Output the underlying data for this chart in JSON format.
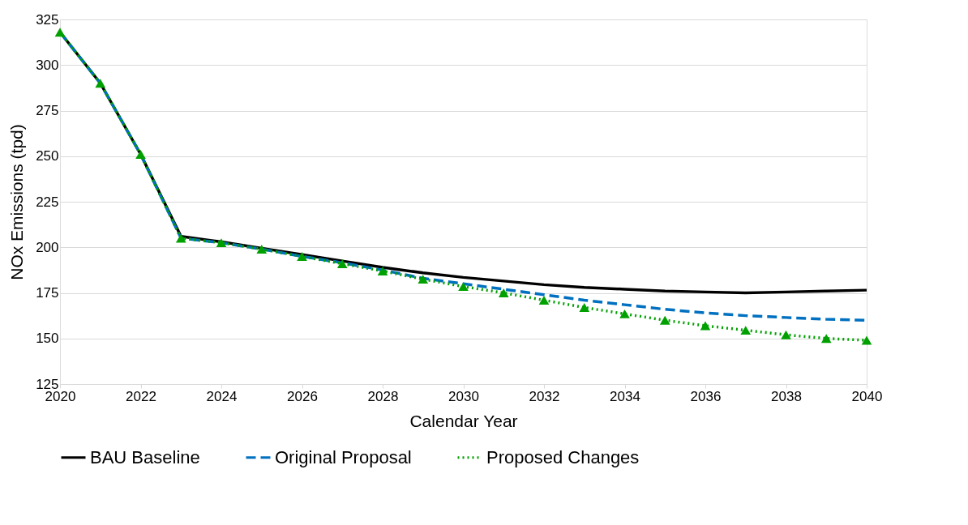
{
  "chart_data": {
    "type": "line",
    "xlabel": "Calendar Year",
    "ylabel": "NOx Emissions (tpd)",
    "x": [
      2020,
      2021,
      2022,
      2023,
      2024,
      2025,
      2026,
      2027,
      2028,
      2029,
      2030,
      2031,
      2032,
      2033,
      2034,
      2035,
      2036,
      2037,
      2038,
      2039,
      2040
    ],
    "series": [
      {
        "name": "BAU Baseline",
        "color": "#000000",
        "line_style": "solid",
        "marker": "none",
        "values": [
          318,
          290,
          251,
          206,
          203,
          199.5,
          196,
          192.5,
          189,
          186,
          183.5,
          181.5,
          179.5,
          178,
          177,
          176,
          175.5,
          175,
          175.5,
          176,
          176.5
        ]
      },
      {
        "name": "Original Proposal",
        "color": "#0070c0",
        "line_style": "dashed",
        "marker": "none",
        "values": [
          318,
          290,
          251,
          205,
          202.5,
          199,
          195,
          191.5,
          187.5,
          183,
          180,
          177,
          174,
          171,
          168.5,
          166,
          164,
          162.5,
          161.5,
          160.5,
          160
        ]
      },
      {
        "name": "Proposed Changes",
        "color": "#00a000",
        "line_style": "dotted",
        "marker": "triangle",
        "values": [
          318,
          290,
          251,
          205,
          202.5,
          199,
          195,
          191,
          187,
          182.5,
          178.5,
          175,
          171,
          167,
          163.5,
          160,
          157,
          154.5,
          152,
          150,
          149
        ]
      }
    ],
    "xlim": [
      2020,
      2040
    ],
    "xticks": [
      2020,
      2022,
      2024,
      2026,
      2028,
      2030,
      2032,
      2034,
      2036,
      2038,
      2040
    ],
    "ylim": [
      125,
      325
    ],
    "yticks": [
      125,
      150,
      175,
      200,
      225,
      250,
      275,
      300,
      325
    ],
    "grid": "y",
    "legend": "bottom"
  }
}
